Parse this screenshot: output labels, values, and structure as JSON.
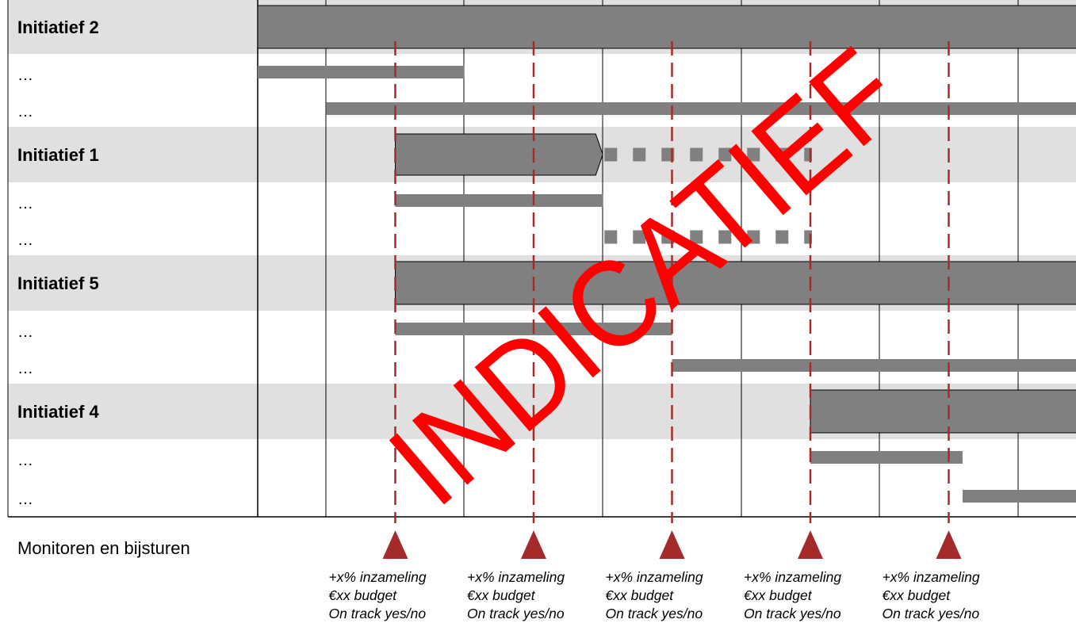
{
  "rows": [
    {
      "label": "Initiatief 2",
      "kind": "header"
    },
    {
      "label": "…",
      "kind": "sub"
    },
    {
      "label": "…",
      "kind": "sub"
    },
    {
      "label": "Initiatief 1",
      "kind": "header"
    },
    {
      "label": "…",
      "kind": "sub"
    },
    {
      "label": "…",
      "kind": "sub"
    },
    {
      "label": "Initiatief 5",
      "kind": "header"
    },
    {
      "label": "…",
      "kind": "sub"
    },
    {
      "label": "…",
      "kind": "sub"
    },
    {
      "label": "Initiatief 4",
      "kind": "header"
    },
    {
      "label": "…",
      "kind": "sub"
    },
    {
      "label": "…",
      "kind": "sub"
    }
  ],
  "bars": [
    {
      "row": 0,
      "start": 0,
      "end": 6,
      "style": "header"
    },
    {
      "row": 1,
      "start": 0,
      "end": 1.5,
      "style": "sub"
    },
    {
      "row": 2,
      "start": 0.5,
      "end": 6,
      "style": "sub"
    },
    {
      "row": 3,
      "start": 1,
      "end": 2.5,
      "style": "arrow"
    },
    {
      "row": 3,
      "start": 2.5,
      "end": 4,
      "style": "dotted"
    },
    {
      "row": 4,
      "start": 1,
      "end": 2.5,
      "style": "sub"
    },
    {
      "row": 5,
      "start": 2.5,
      "end": 4,
      "style": "dotted"
    },
    {
      "row": 6,
      "start": 1,
      "end": 6,
      "style": "header"
    },
    {
      "row": 7,
      "start": 1,
      "end": 3,
      "style": "sub"
    },
    {
      "row": 8,
      "start": 3,
      "end": 6,
      "style": "sub"
    },
    {
      "row": 9,
      "start": 4,
      "end": 6,
      "style": "header"
    },
    {
      "row": 10,
      "start": 4,
      "end": 5.1,
      "style": "sub"
    },
    {
      "row": 11,
      "start": 5.1,
      "end": 6,
      "style": "sub"
    }
  ],
  "milestones": [
    {
      "position": 1,
      "lines": [
        "+x% inzameling",
        "€xx budget",
        "On track yes/no"
      ]
    },
    {
      "position": 2,
      "lines": [
        "+x% inzameling",
        "€xx budget",
        "On track yes/no"
      ]
    },
    {
      "position": 3,
      "lines": [
        "+x% inzameling",
        "€xx budget",
        "On track yes/no"
      ]
    },
    {
      "position": 4,
      "lines": [
        "+x% inzameling",
        "€xx budget",
        "On track yes/no"
      ]
    },
    {
      "position": 5,
      "lines": [
        "+x% inzameling",
        "€xx budget",
        "On track yes/no"
      ]
    }
  ],
  "monitor_label": "Monitoren en bijsturen",
  "watermark": "INDICATIEF",
  "colors": {
    "bar": "#808080",
    "band": "#e0e0e0",
    "milestone": "#a52a2a",
    "watermark": "#ff0000",
    "grid": "#000000"
  }
}
